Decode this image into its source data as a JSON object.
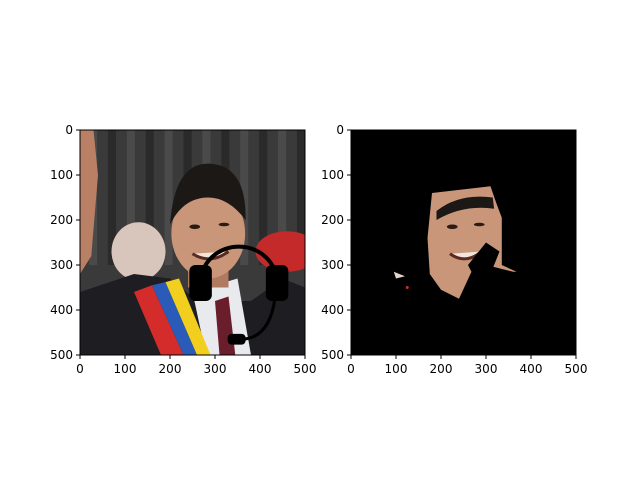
{
  "chart_data": [
    {
      "type": "image",
      "panel": "left",
      "content": "photo of a smiling man wearing a suit, white shirt and a yellow-blue-red sash, with a black headset drawn over the head",
      "xlim": [
        0,
        500
      ],
      "ylim": [
        500,
        0
      ],
      "xticks": [
        0,
        100,
        200,
        300,
        400,
        500
      ],
      "yticks": [
        0,
        100,
        200,
        300,
        400,
        500
      ],
      "xtick_labels": [
        "0",
        "100",
        "200",
        "300",
        "400",
        "500"
      ],
      "ytick_labels": [
        "0",
        "100",
        "200",
        "300",
        "400",
        "500"
      ],
      "annotations": {
        "headset_band_center": [
          325,
          380
        ],
        "headset_band_radii": [
          70,
          80
        ],
        "earcup_left": [
          268,
          340
        ],
        "earcup_right": [
          438,
          340
        ],
        "mic_tip": [
          348,
          465
        ]
      }
    },
    {
      "type": "image",
      "panel": "right",
      "content": "segmentation mask: only the face region of the photo is visible, everything else is black",
      "xlim": [
        0,
        500
      ],
      "ylim": [
        500,
        0
      ],
      "xticks": [
        0,
        100,
        200,
        300,
        400,
        500
      ],
      "yticks": [
        0,
        100,
        200,
        300,
        400,
        500
      ],
      "xtick_labels": [
        "0",
        "100",
        "200",
        "300",
        "400",
        "500"
      ],
      "ytick_labels": [
        "0",
        "100",
        "200",
        "300",
        "400",
        "500"
      ],
      "mask_region_outline": [
        [
          180,
          140
        ],
        [
          310,
          125
        ],
        [
          322,
          160
        ],
        [
          335,
          195
        ],
        [
          335,
          300
        ],
        [
          368,
          315
        ],
        [
          360,
          315
        ],
        [
          300,
          300
        ],
        [
          270,
          310
        ],
        [
          240,
          375
        ],
        [
          200,
          355
        ],
        [
          175,
          320
        ],
        [
          170,
          240
        ]
      ]
    }
  ],
  "colors": {
    "background": "#ffffff",
    "mask_background": "#000000",
    "skin": "#c9967a",
    "hair": "#1c1816",
    "suit": "#1e1e22",
    "shirt": "#e8eaee",
    "sash_yellow": "#f2cf1f",
    "sash_blue": "#2a5bb8",
    "sash_red": "#d42b2b",
    "curtain": "#3a3a3a",
    "headset": "#000000"
  }
}
